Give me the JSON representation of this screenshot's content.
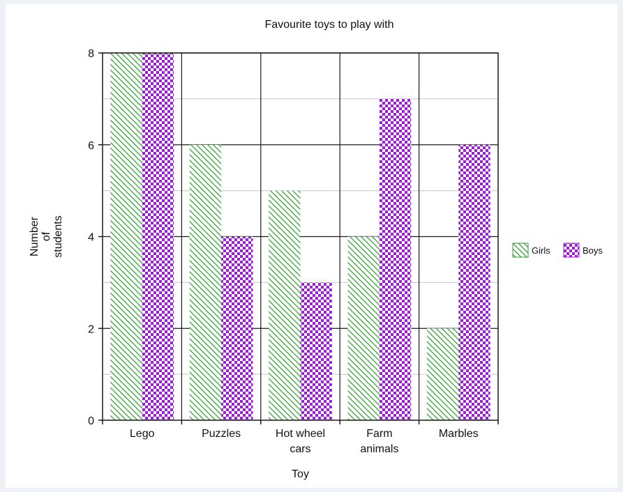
{
  "chart_data": {
    "type": "bar",
    "title": "Favourite toys to play with",
    "xlabel": "Toy",
    "ylabel": [
      "Number",
      "of",
      "students"
    ],
    "categories": [
      [
        "Lego"
      ],
      [
        "Puzzles"
      ],
      [
        "Hot wheel",
        "cars"
      ],
      [
        "Farm",
        "animals"
      ],
      [
        "Marbles"
      ]
    ],
    "series": [
      {
        "name": "Girls",
        "values": [
          8,
          6,
          5,
          4,
          2
        ],
        "color": "#3a9a3a",
        "pattern": "diagonal-hatch"
      },
      {
        "name": "Boys",
        "values": [
          8,
          4,
          3,
          7,
          6
        ],
        "color": "#9b1fd6",
        "pattern": "checkerboard"
      }
    ],
    "ylim": [
      0,
      8
    ],
    "yticks": [
      0,
      2,
      4,
      6,
      8
    ],
    "grid": true,
    "legend": "right"
  }
}
